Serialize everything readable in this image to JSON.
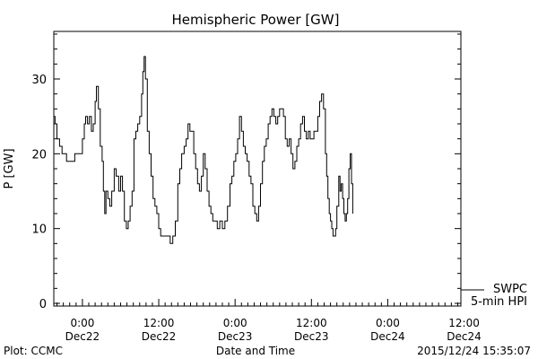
{
  "chart_data": {
    "type": "line",
    "title": "Hemispheric Power [GW]",
    "xlabel": "Date and Time",
    "ylabel": "P [GW]",
    "x_unit": "hours from 2015-12-22 00:00 UT",
    "xlim": [
      -4.5,
      59.5
    ],
    "ylim": [
      0,
      36
    ],
    "yticks": [
      0,
      10,
      20,
      30
    ],
    "xticks": [
      {
        "x": 0,
        "time": "0:00",
        "date": "Dec22"
      },
      {
        "x": 12,
        "time": "12:00",
        "date": "Dec22"
      },
      {
        "x": 24,
        "time": "0:00",
        "date": "Dec23"
      },
      {
        "x": 36,
        "time": "12:00",
        "date": "Dec23"
      },
      {
        "x": 48,
        "time": "0:00",
        "date": "Dec24"
      },
      {
        "x": 60,
        "time": "12:00",
        "date": "Dec24"
      }
    ],
    "legend_position": "bottom-right",
    "series": [
      {
        "name": "5-min HPI",
        "color": "#000000",
        "points": [
          [
            -4.5,
            25
          ],
          [
            -4.3,
            24
          ],
          [
            -4.0,
            22
          ],
          [
            -3.6,
            21
          ],
          [
            -3.2,
            20
          ],
          [
            -2.8,
            20
          ],
          [
            -2.5,
            19
          ],
          [
            -2.0,
            19
          ],
          [
            -1.6,
            19
          ],
          [
            -1.2,
            20
          ],
          [
            -0.8,
            20
          ],
          [
            -0.4,
            20
          ],
          [
            0.0,
            22
          ],
          [
            0.3,
            24
          ],
          [
            0.5,
            25
          ],
          [
            0.8,
            24
          ],
          [
            1.1,
            25
          ],
          [
            1.4,
            23
          ],
          [
            1.7,
            24
          ],
          [
            2.0,
            27
          ],
          [
            2.2,
            29
          ],
          [
            2.5,
            26
          ],
          [
            2.8,
            21
          ],
          [
            3.1,
            19
          ],
          [
            3.3,
            15
          ],
          [
            3.5,
            12
          ],
          [
            3.7,
            15
          ],
          [
            4.0,
            14
          ],
          [
            4.3,
            13
          ],
          [
            4.6,
            15
          ],
          [
            5.0,
            18
          ],
          [
            5.3,
            17
          ],
          [
            5.7,
            15
          ],
          [
            6.0,
            17
          ],
          [
            6.3,
            15
          ],
          [
            6.6,
            11
          ],
          [
            6.9,
            10
          ],
          [
            7.2,
            11
          ],
          [
            7.5,
            13
          ],
          [
            7.8,
            15
          ],
          [
            8.1,
            22
          ],
          [
            8.4,
            23
          ],
          [
            8.7,
            24
          ],
          [
            9.0,
            25
          ],
          [
            9.3,
            28
          ],
          [
            9.5,
            31
          ],
          [
            9.7,
            33
          ],
          [
            9.9,
            30
          ],
          [
            10.2,
            23
          ],
          [
            10.5,
            20
          ],
          [
            10.8,
            17
          ],
          [
            11.1,
            14
          ],
          [
            11.4,
            13
          ],
          [
            11.7,
            12
          ],
          [
            12.0,
            10
          ],
          [
            12.3,
            9
          ],
          [
            12.6,
            9
          ],
          [
            13.0,
            9
          ],
          [
            13.4,
            9
          ],
          [
            13.8,
            8
          ],
          [
            14.2,
            9
          ],
          [
            14.6,
            11
          ],
          [
            15.0,
            16
          ],
          [
            15.3,
            18
          ],
          [
            15.6,
            20
          ],
          [
            16.0,
            21
          ],
          [
            16.3,
            22
          ],
          [
            16.6,
            24
          ],
          [
            16.9,
            23
          ],
          [
            17.2,
            23
          ],
          [
            17.5,
            20
          ],
          [
            17.8,
            18
          ],
          [
            18.1,
            16
          ],
          [
            18.4,
            15
          ],
          [
            18.7,
            17
          ],
          [
            19.0,
            20
          ],
          [
            19.3,
            18
          ],
          [
            19.6,
            15
          ],
          [
            19.9,
            13
          ],
          [
            20.2,
            12
          ],
          [
            20.5,
            11
          ],
          [
            20.8,
            11
          ],
          [
            21.2,
            10
          ],
          [
            21.6,
            11
          ],
          [
            22.0,
            10
          ],
          [
            22.4,
            11
          ],
          [
            22.8,
            13
          ],
          [
            23.2,
            16
          ],
          [
            23.5,
            17
          ],
          [
            23.8,
            19
          ],
          [
            24.1,
            20
          ],
          [
            24.4,
            22
          ],
          [
            24.7,
            25
          ],
          [
            25.0,
            23
          ],
          [
            25.3,
            21
          ],
          [
            25.6,
            20
          ],
          [
            25.9,
            19
          ],
          [
            26.2,
            17
          ],
          [
            26.5,
            16
          ],
          [
            26.8,
            13
          ],
          [
            27.1,
            12
          ],
          [
            27.4,
            11
          ],
          [
            27.7,
            13
          ],
          [
            28.0,
            16
          ],
          [
            28.3,
            19
          ],
          [
            28.6,
            21
          ],
          [
            28.9,
            22
          ],
          [
            29.2,
            24
          ],
          [
            29.5,
            25
          ],
          [
            29.8,
            26
          ],
          [
            30.1,
            25
          ],
          [
            30.4,
            24
          ],
          [
            30.7,
            25
          ],
          [
            31.0,
            26
          ],
          [
            31.3,
            26
          ],
          [
            31.6,
            25
          ],
          [
            31.9,
            22
          ],
          [
            32.2,
            21
          ],
          [
            32.5,
            22
          ],
          [
            32.8,
            20
          ],
          [
            33.1,
            18
          ],
          [
            33.4,
            19
          ],
          [
            33.7,
            21
          ],
          [
            34.0,
            22
          ],
          [
            34.3,
            24
          ],
          [
            34.6,
            25
          ],
          [
            34.9,
            23
          ],
          [
            35.2,
            22
          ],
          [
            35.5,
            23
          ],
          [
            35.8,
            22
          ],
          [
            36.1,
            22
          ],
          [
            36.4,
            23
          ],
          [
            36.7,
            23
          ],
          [
            37.0,
            25
          ],
          [
            37.3,
            27
          ],
          [
            37.6,
            28
          ],
          [
            37.9,
            26
          ],
          [
            38.2,
            20
          ],
          [
            38.4,
            17
          ],
          [
            38.6,
            14
          ],
          [
            38.8,
            12
          ],
          [
            39.0,
            11
          ],
          [
            39.2,
            10
          ],
          [
            39.4,
            9
          ],
          [
            39.6,
            9
          ],
          [
            39.8,
            10
          ],
          [
            40.0,
            13
          ],
          [
            40.3,
            17
          ],
          [
            40.5,
            15
          ],
          [
            40.7,
            16
          ],
          [
            40.9,
            14
          ],
          [
            41.1,
            12
          ],
          [
            41.3,
            11
          ],
          [
            41.5,
            12
          ],
          [
            41.7,
            14
          ],
          [
            41.9,
            18
          ],
          [
            42.1,
            20
          ],
          [
            42.3,
            16
          ],
          [
            42.5,
            12
          ]
        ]
      }
    ]
  },
  "legend": {
    "top_label": "SWPC",
    "bottom_label": "5-min HPI"
  },
  "footer": {
    "left": "Plot: CCMC",
    "right": "2015/12/24 15:35:07"
  }
}
